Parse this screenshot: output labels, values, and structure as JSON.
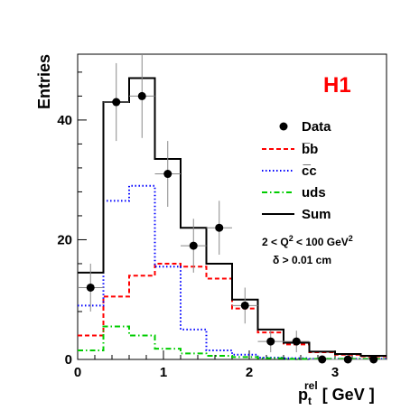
{
  "chart_data": {
    "type": "histogram",
    "experiment_label": "H1",
    "xlabel": {
      "main": "p",
      "sub": "t",
      "sup": "rel",
      "unit": " [ GeV ]"
    },
    "ylabel": "Entries",
    "xlim": [
      0,
      3.6
    ],
    "ylim": [
      0,
      51
    ],
    "xticks": [
      "0",
      "1",
      "2",
      "3"
    ],
    "yticks": [
      "0",
      "20",
      "40"
    ],
    "bin_edges": [
      0,
      0.3,
      0.6,
      0.9,
      1.2,
      1.5,
      1.8,
      2.1,
      2.4,
      2.7,
      3.0,
      3.3,
      3.6
    ],
    "data": {
      "name": "Data",
      "x": [
        0.15,
        0.45,
        0.75,
        1.05,
        1.35,
        1.65,
        1.95,
        2.25,
        2.55,
        2.85,
        3.15,
        3.45
      ],
      "y": [
        12,
        43,
        44,
        31,
        19,
        22,
        9,
        3,
        3,
        0,
        0,
        0
      ],
      "yerr": [
        4,
        6.5,
        7,
        5.5,
        4.5,
        4.5,
        3,
        1.8,
        1.8,
        0.5,
        0.5,
        0.5
      ]
    },
    "series": [
      {
        "name": "b̅b",
        "color": "#ff0000",
        "dash": "5,3",
        "values": [
          4,
          10.5,
          14,
          16,
          15.5,
          13.5,
          8.5,
          4.5,
          2.5,
          1.2,
          0.8,
          0.5
        ]
      },
      {
        "name": "c̅c",
        "color": "#0000ff",
        "dash": "1.5,2.5",
        "values": [
          9,
          26.5,
          29,
          15.5,
          5,
          1.5,
          0.8,
          0.3,
          0.2,
          0.1,
          0.1,
          0.1
        ]
      },
      {
        "name": "uds",
        "color": "#00cc00",
        "dash": "6,3,1.5,3",
        "values": [
          1.5,
          5.5,
          4,
          1.8,
          1,
          0.6,
          0.4,
          0.2,
          0.1,
          0.1,
          0.1,
          0.1
        ]
      },
      {
        "name": "Sum",
        "color": "#000000",
        "dash": "",
        "values": [
          14.5,
          43,
          47,
          33.5,
          22,
          16,
          10,
          5,
          2.8,
          1.3,
          0.9,
          0.6
        ]
      }
    ],
    "cuts": {
      "line1": {
        "pre": "2 < Q",
        "sup": "2",
        "mid": " < 100 GeV",
        "sup2": "2"
      },
      "line2": "δ > 0.01 cm"
    },
    "colors": {
      "tag": "#ff0000",
      "frame": "#000000"
    }
  }
}
